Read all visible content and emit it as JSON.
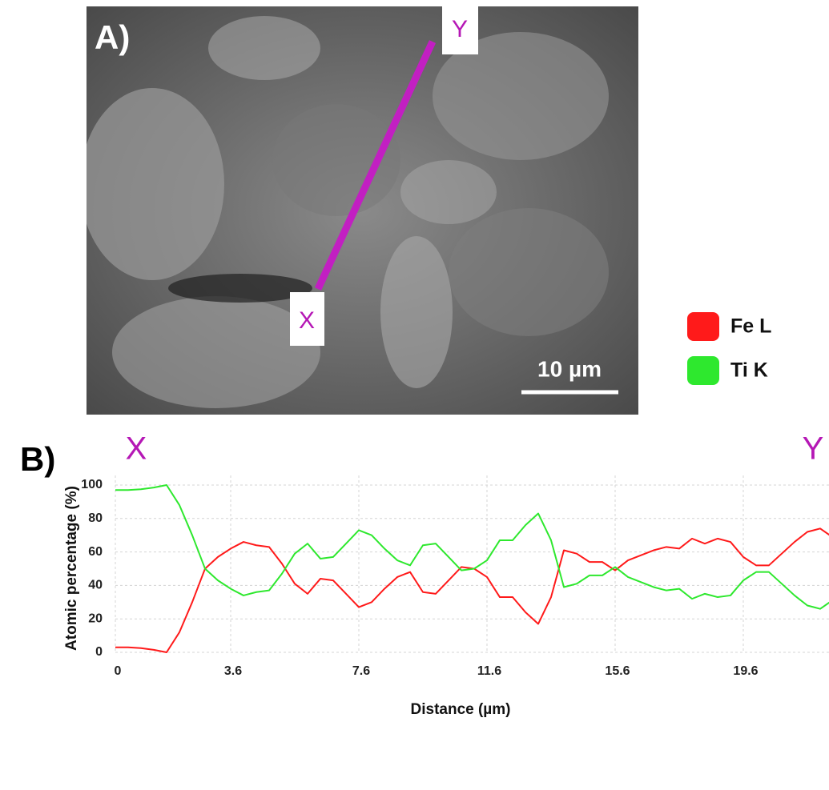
{
  "panel_a": {
    "label": "A)",
    "point_start": "X",
    "point_end": "Y",
    "scale_bar": "10 µm"
  },
  "chart_data": {
    "type": "line",
    "panel_label": "B)",
    "start_label": "X",
    "end_label": "Y",
    "x_label": "Distance (µm)",
    "y_label": "Atomic percentage (%)",
    "xlim": [
      0,
      22.3
    ],
    "ylim": [
      0,
      100
    ],
    "xticks": [
      0,
      3.6,
      7.6,
      11.6,
      15.6,
      19.6
    ],
    "yticks": [
      0,
      20,
      40,
      60,
      80,
      100
    ],
    "grid": true,
    "x": [
      0,
      0.4,
      0.8,
      1.2,
      1.6,
      2.0,
      2.4,
      2.8,
      3.2,
      3.6,
      4.0,
      4.4,
      4.8,
      5.2,
      5.6,
      6.0,
      6.4,
      6.8,
      7.2,
      7.6,
      8.0,
      8.4,
      8.8,
      9.2,
      9.6,
      10.0,
      10.4,
      10.8,
      11.2,
      11.6,
      12.0,
      12.4,
      12.8,
      13.2,
      13.6,
      14.0,
      14.4,
      14.8,
      15.2,
      15.6,
      16.0,
      16.4,
      16.8,
      17.2,
      17.6,
      18.0,
      18.4,
      18.8,
      19.2,
      19.6,
      20.0,
      20.4,
      20.8,
      21.2,
      21.6,
      22.0,
      22.3
    ],
    "series": [
      {
        "name": "Fe L",
        "color": "#ff1a1a",
        "values": [
          3,
          3,
          2.5,
          1.5,
          0,
          12,
          30,
          50,
          57,
          62,
          66,
          64,
          63,
          53,
          41,
          35,
          44,
          43,
          35,
          27,
          30,
          38,
          45,
          48,
          36,
          35,
          43,
          51,
          50,
          45,
          33,
          33,
          24,
          17,
          33,
          61,
          59,
          54,
          54,
          49,
          55,
          58,
          61,
          63,
          62,
          68,
          65,
          68,
          66,
          57,
          52,
          52,
          59,
          66,
          72,
          74,
          70
        ]
      },
      {
        "name": "Ti K",
        "color": "#2ee82e",
        "values": [
          97,
          97,
          97.5,
          98.5,
          100,
          88,
          70,
          50,
          43,
          38,
          34,
          36,
          37,
          47,
          59,
          65,
          56,
          57,
          65,
          73,
          70,
          62,
          55,
          52,
          64,
          65,
          57,
          49,
          50,
          55,
          67,
          67,
          76,
          83,
          67,
          39,
          41,
          46,
          46,
          51,
          45,
          42,
          39,
          37,
          38,
          32,
          35,
          33,
          34,
          43,
          48,
          48,
          41,
          34,
          28,
          26,
          30
        ]
      }
    ]
  }
}
